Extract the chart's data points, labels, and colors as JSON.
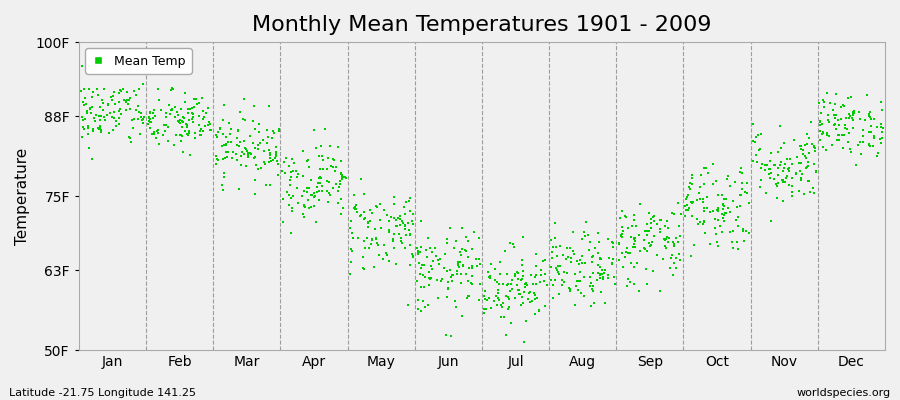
{
  "title": "Monthly Mean Temperatures 1901 - 2009",
  "ylabel": "Temperature",
  "months": [
    "Jan",
    "Feb",
    "Mar",
    "Apr",
    "May",
    "Jun",
    "Jul",
    "Aug",
    "Sep",
    "Oct",
    "Nov",
    "Dec"
  ],
  "ylim": [
    50,
    100
  ],
  "yticks": [
    50,
    63,
    75,
    88,
    100
  ],
  "ytick_labels": [
    "50F",
    "63F",
    "75F",
    "88F",
    "100F"
  ],
  "mean_temps_by_month": [
    88.5,
    87.0,
    83.0,
    77.5,
    69.5,
    62.5,
    60.5,
    63.0,
    67.5,
    73.5,
    80.0,
    86.5
  ],
  "std_temps_by_month": [
    2.8,
    2.5,
    2.8,
    3.2,
    3.5,
    3.5,
    3.2,
    3.0,
    3.5,
    3.8,
    3.2,
    2.5
  ],
  "n_years": 109,
  "marker_color": "#00cc00",
  "marker_size": 3,
  "bg_color": "#f0f0f0",
  "plot_bg_color": "#f0f0f0",
  "title_fontsize": 16,
  "axis_label_fontsize": 11,
  "tick_fontsize": 10,
  "legend_label": "Mean Temp",
  "footer_left": "Latitude -21.75 Longitude 141.25",
  "footer_right": "worldspecies.org",
  "seed": 42
}
